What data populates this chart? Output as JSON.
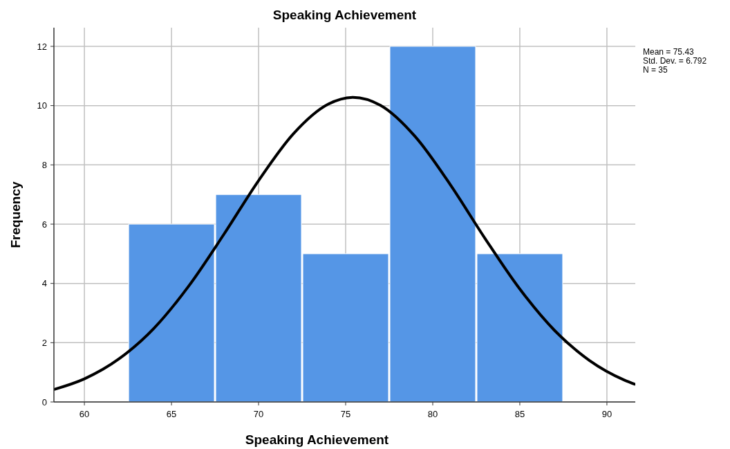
{
  "chart_data": {
    "type": "histogram",
    "title": "Speaking Achievement",
    "xlabel": "Speaking Achievement",
    "ylabel": "Frequency",
    "bins": [
      62.5,
      67.5,
      72.5,
      77.5,
      82.5,
      87.5
    ],
    "values": [
      6,
      7,
      5,
      12,
      5
    ],
    "color": "#5596e6",
    "series": [
      {
        "type": "line",
        "color": "#000000",
        "x": [
          58.3,
          60,
          62,
          64,
          66,
          68,
          70,
          72,
          74,
          75.43,
          77,
          79,
          81,
          83,
          85,
          87,
          89,
          91,
          91.6
        ],
        "values": [
          0.43,
          0.78,
          1.46,
          2.49,
          3.92,
          5.65,
          7.47,
          9.05,
          10.05,
          10.28,
          10.01,
          8.95,
          7.34,
          5.52,
          3.81,
          2.41,
          1.4,
          0.74,
          0.6
        ]
      }
    ],
    "xlim": [
      58.25,
      91.63
    ],
    "xticks": [
      60,
      65,
      70,
      75,
      80,
      85,
      90
    ],
    "ylim": [
      0,
      12.63
    ],
    "yticks": [
      0,
      2,
      4,
      6,
      8,
      10,
      12
    ],
    "grid": true,
    "line_style": "solid",
    "marker": "none",
    "annotations": [
      "Mean = 75.43",
      "Std. Dev. = 6.792",
      "N = 35"
    ]
  }
}
